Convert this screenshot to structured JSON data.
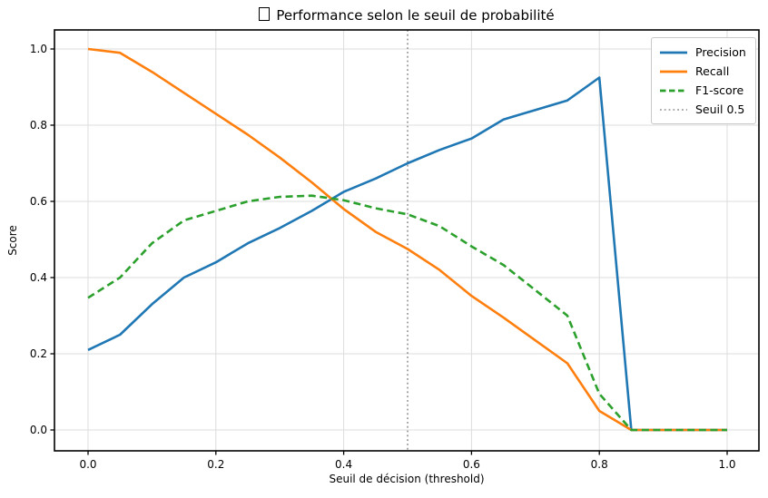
{
  "chart_data": {
    "type": "line",
    "title": "Performance selon le seuil de probabilité",
    "title_missing_glyph_prefix": true,
    "xlabel": "Seuil de décision (threshold)",
    "ylabel": "Score",
    "grid": true,
    "xlim": [
      -0.053,
      1.049
    ],
    "ylim": [
      -0.055,
      1.05
    ],
    "xticks": [
      0.0,
      0.2,
      0.4,
      0.6,
      0.8,
      1.0
    ],
    "yticks": [
      0.0,
      0.2,
      0.4,
      0.6,
      0.8,
      1.0
    ],
    "xtick_labels": [
      "0.0",
      "0.2",
      "0.4",
      "0.6",
      "0.8",
      "1.0"
    ],
    "ytick_labels": [
      "0.0",
      "0.2",
      "0.4",
      "0.6",
      "0.8",
      "1.0"
    ],
    "x": [
      0.0,
      0.05,
      0.1,
      0.15,
      0.2,
      0.25,
      0.3,
      0.35,
      0.4,
      0.45,
      0.5,
      0.55,
      0.6,
      0.65,
      0.7,
      0.75,
      0.8,
      0.85,
      0.9,
      0.95,
      1.0
    ],
    "series": [
      {
        "name": "Precision",
        "color": "#1f77b4",
        "style": "solid",
        "values": [
          0.21,
          0.25,
          0.33,
          0.4,
          0.44,
          0.49,
          0.53,
          0.575,
          0.625,
          0.66,
          0.7,
          0.735,
          0.765,
          0.815,
          0.84,
          0.865,
          0.925,
          0.0,
          0.0,
          0.0,
          0.0
        ]
      },
      {
        "name": "Recall",
        "color": "#ff7f0e",
        "style": "solid",
        "values": [
          1.0,
          0.99,
          0.94,
          0.885,
          0.83,
          0.775,
          0.715,
          0.65,
          0.58,
          0.52,
          0.475,
          0.42,
          0.352,
          0.295,
          0.235,
          0.175,
          0.05,
          0.0,
          0.0,
          0.0,
          0.0
        ]
      },
      {
        "name": "F1-score",
        "color": "#2ca02c",
        "style": "dashed",
        "values": [
          0.347,
          0.4,
          0.49,
          0.55,
          0.575,
          0.6,
          0.612,
          0.615,
          0.603,
          0.582,
          0.566,
          0.535,
          0.482,
          0.433,
          0.367,
          0.3,
          0.095,
          0.0,
          0.0,
          0.0,
          0.0
        ]
      }
    ],
    "vline": {
      "label": "Seuil 0.5",
      "x": 0.5,
      "color": "#808080",
      "style": "dotted"
    },
    "legend": {
      "position": "upper right",
      "items": [
        {
          "label": "Precision",
          "color": "#1f77b4",
          "style": "solid"
        },
        {
          "label": "Recall",
          "color": "#ff7f0e",
          "style": "solid"
        },
        {
          "label": "F1-score",
          "color": "#2ca02c",
          "style": "dashed"
        },
        {
          "label": "Seuil 0.5",
          "color": "#8f8f8f",
          "style": "dotted"
        }
      ]
    },
    "colors": {
      "grid": "#dcdcdc",
      "spine": "#000000",
      "background": "#ffffff"
    }
  }
}
